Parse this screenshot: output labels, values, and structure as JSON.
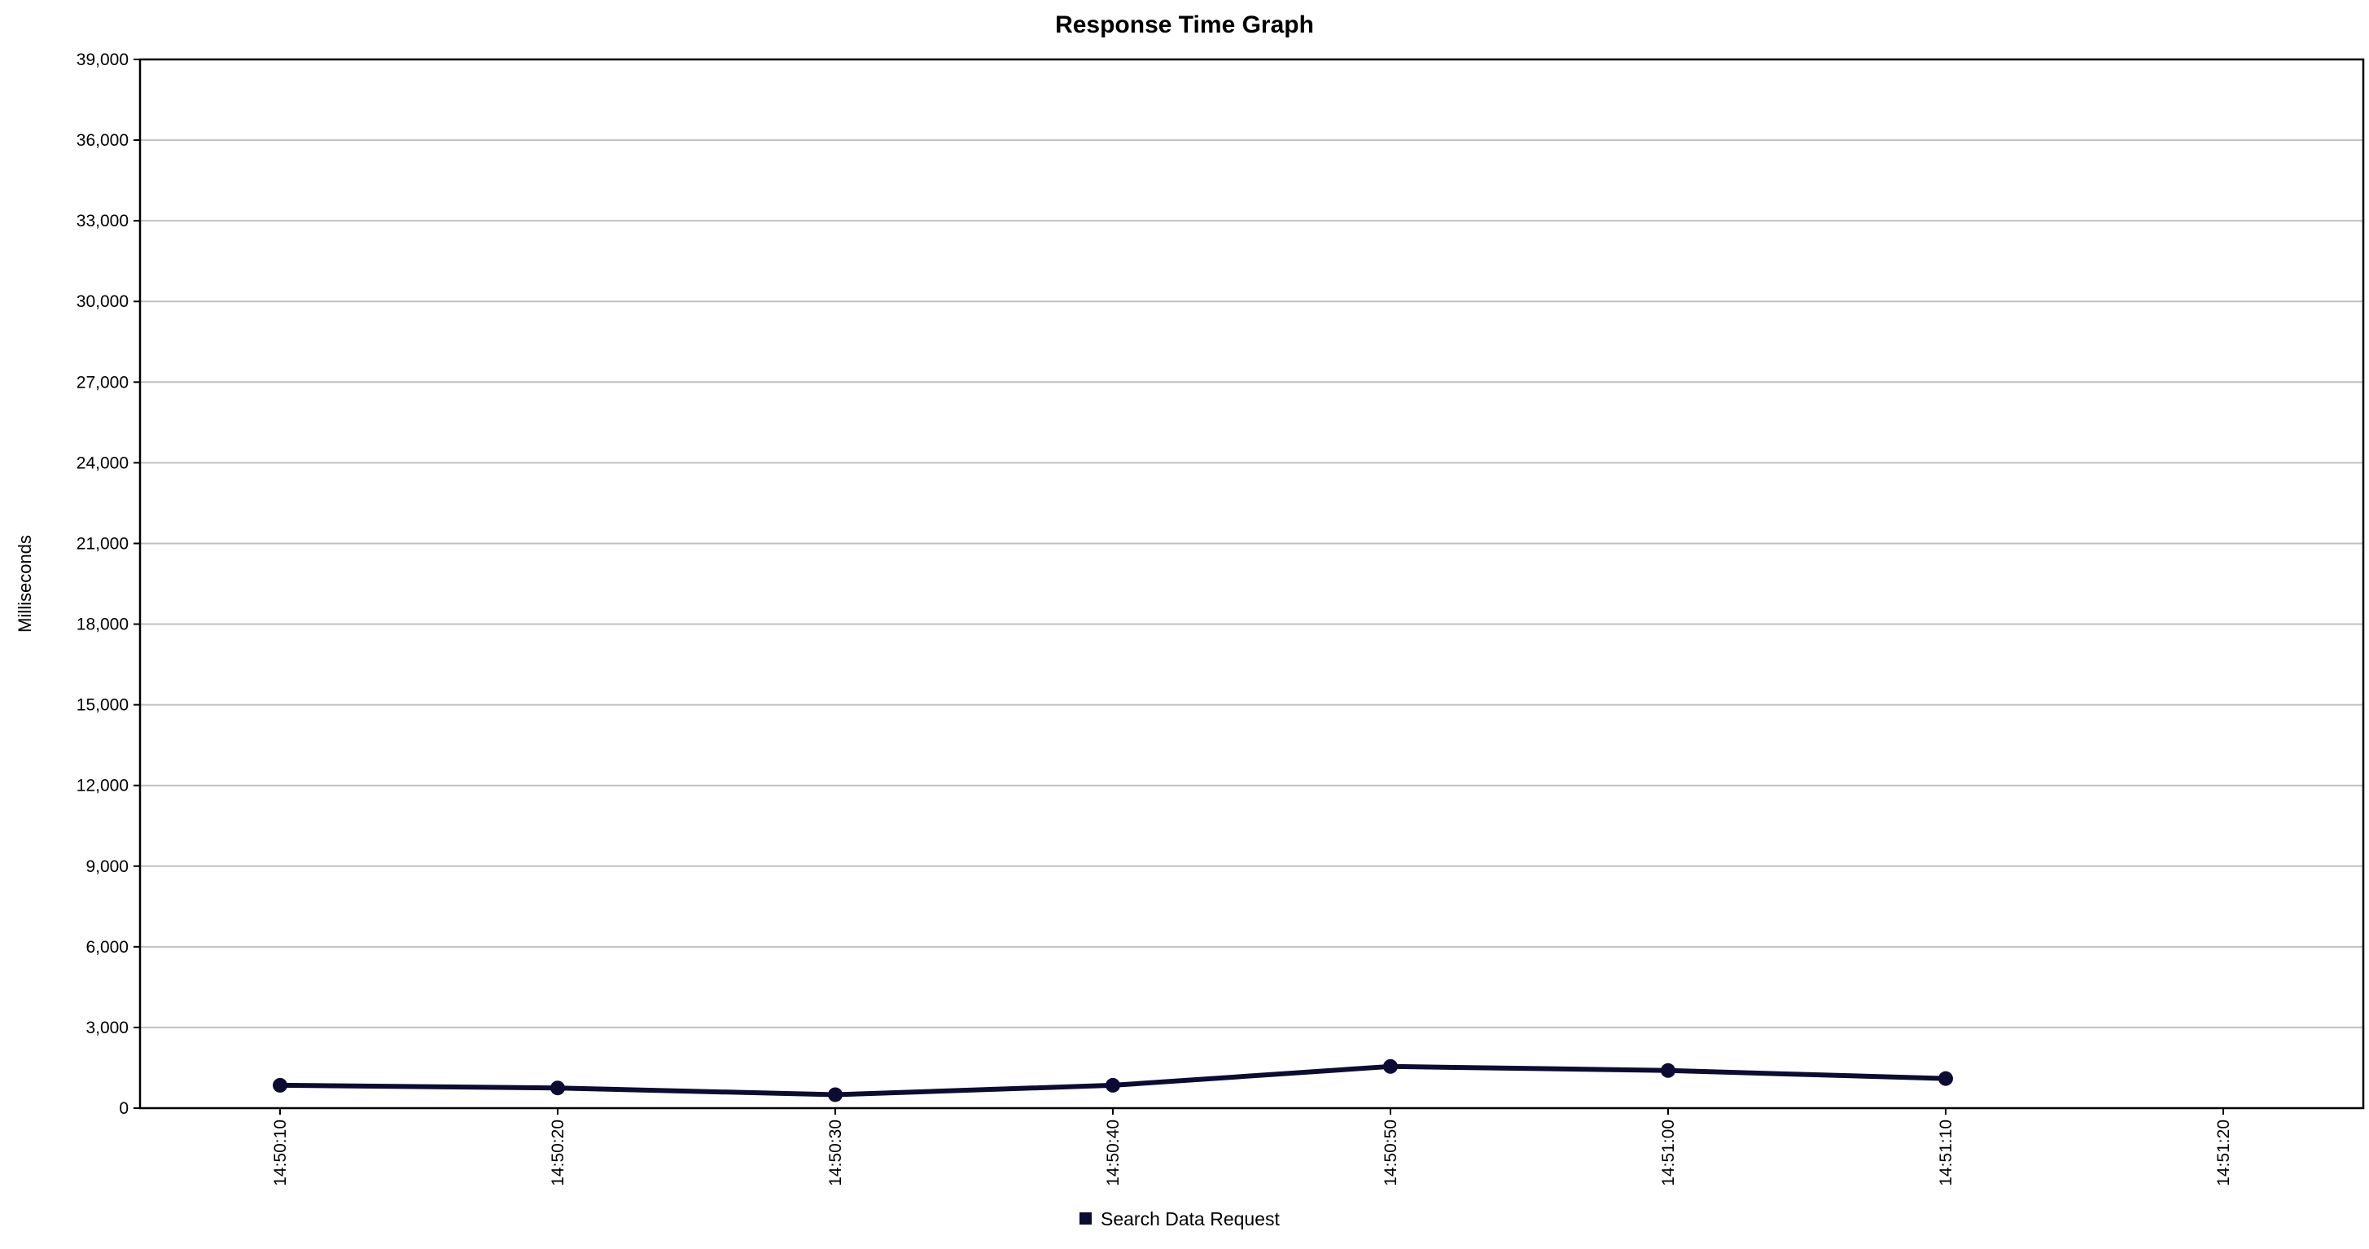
{
  "chart_data": {
    "type": "line",
    "title": "Response Time Graph",
    "xlabel": "",
    "ylabel": "Milliseconds",
    "ylim": [
      0,
      39000
    ],
    "yticks": [
      0,
      3000,
      6000,
      9000,
      12000,
      15000,
      18000,
      21000,
      24000,
      27000,
      30000,
      33000,
      36000,
      39000
    ],
    "ytick_labels": [
      "0",
      "3,000",
      "6,000",
      "9,000",
      "12,000",
      "15,000",
      "18,000",
      "21,000",
      "24,000",
      "27,000",
      "30,000",
      "33,000",
      "36,000",
      "39,000"
    ],
    "categories": [
      "14:50:10",
      "14:50:20",
      "14:50:30",
      "14:50:40",
      "14:50:50",
      "14:51:00",
      "14:51:10",
      "14:51:20"
    ],
    "grid": true,
    "legend_position": "bottom-center",
    "series": [
      {
        "name": "Search Data Request",
        "color": "#0b0b33",
        "values": [
          850,
          750,
          500,
          850,
          1550,
          1400,
          1100,
          null
        ]
      }
    ]
  }
}
